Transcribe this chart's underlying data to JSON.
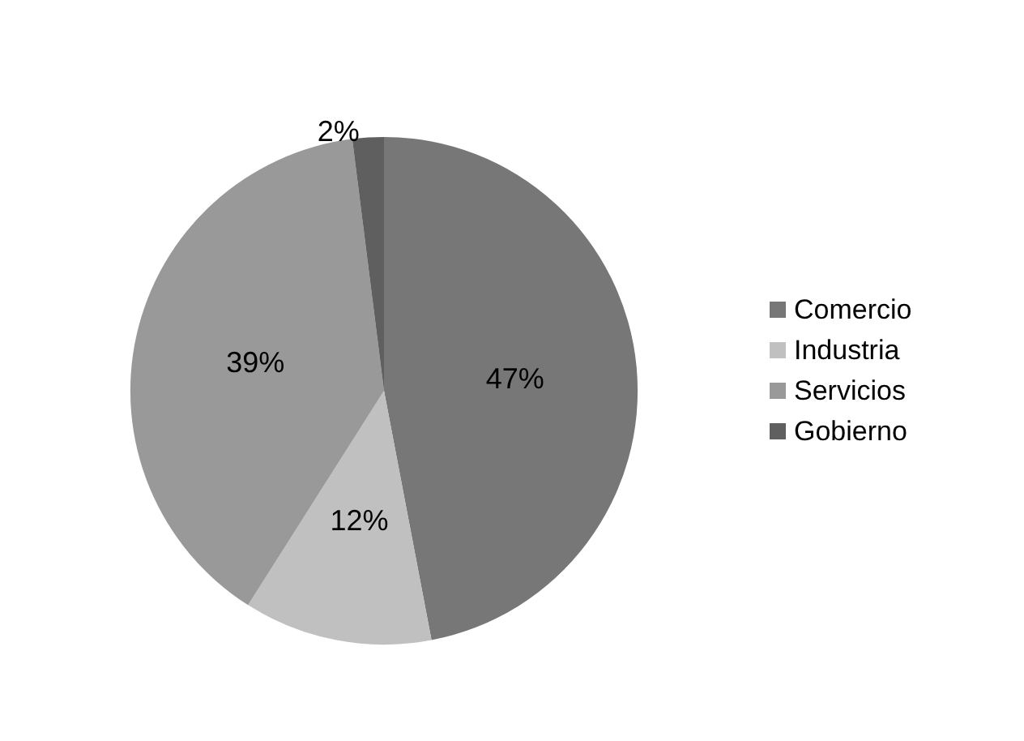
{
  "chart_data": {
    "type": "pie",
    "categories": [
      "Comercio",
      "Industria",
      "Servicios",
      "Gobierno"
    ],
    "values": [
      47,
      12,
      39,
      2
    ],
    "colors": [
      "#777777",
      "#c0c0c0",
      "#999999",
      "#5f5f5f"
    ],
    "value_labels": [
      "47%",
      "12%",
      "39%",
      "2%"
    ],
    "legend": "right"
  }
}
